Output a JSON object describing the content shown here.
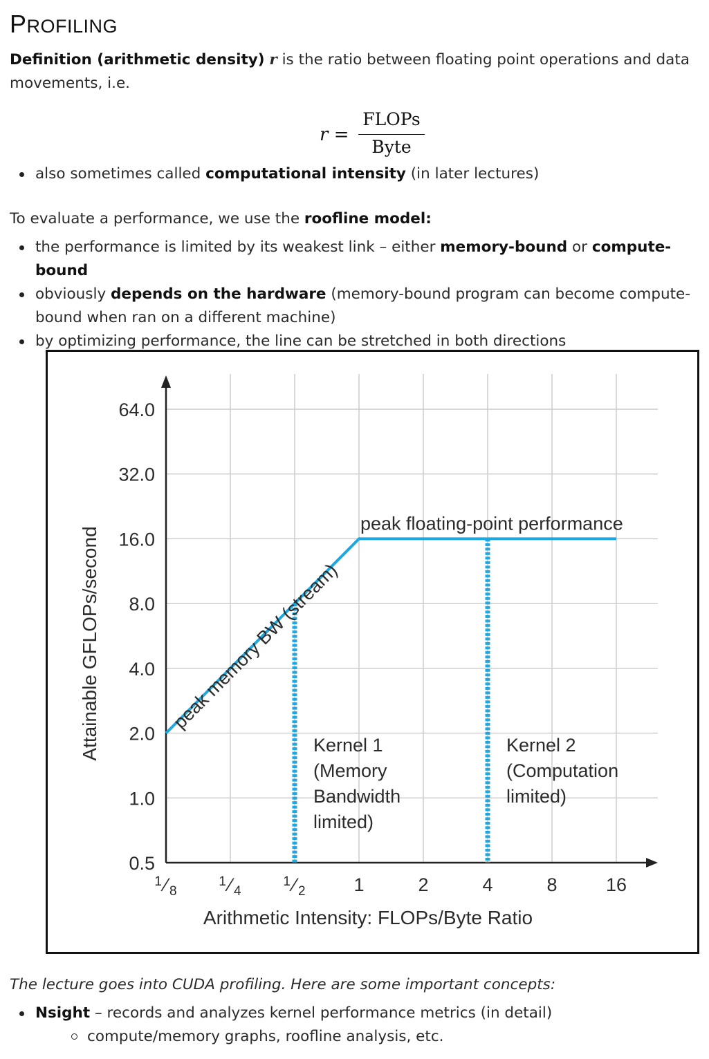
{
  "heading": {
    "first": "P",
    "rest": "ROFILING"
  },
  "definition": {
    "term": "Definition (arithmetic density)",
    "symbol": "r",
    "text": " is the ratio between floating point operations and data movements, i.e."
  },
  "formula": {
    "lhs": "r =",
    "numerator": "FLOPs",
    "denominator": "Byte"
  },
  "bullets1": [
    {
      "pre": "also sometimes called ",
      "bold": "computational intensity",
      "post": " (in later lectures)"
    }
  ],
  "paragraph2": {
    "pre": "To evaluate a performance, we use the ",
    "bold": "roofline model:"
  },
  "bullets2": [
    {
      "pre": "the performance is limited by its weakest link – either ",
      "bold1": "memory-bound",
      "mid": " or ",
      "bold2": "compute-bound"
    },
    {
      "pre": "obviously ",
      "bold": "depends on the hardware",
      "post": " (memory-bound program can become compute-bound when ran on a different machine)"
    },
    {
      "text": "by optimizing performance, the line can be stretched in both directions"
    }
  ],
  "chart_data": {
    "type": "line",
    "xlabel": "Arithmetic Intensity: FLOPs/Byte Ratio",
    "ylabel": "Attainable GFLOPs/second",
    "x_scale": "log2",
    "y_scale": "log2",
    "x_ticks": [
      {
        "value": 0.125,
        "label": "1/8"
      },
      {
        "value": 0.25,
        "label": "1/4"
      },
      {
        "value": 0.5,
        "label": "1/2"
      },
      {
        "value": 1,
        "label": "1"
      },
      {
        "value": 2,
        "label": "2"
      },
      {
        "value": 4,
        "label": "4"
      },
      {
        "value": 8,
        "label": "8"
      },
      {
        "value": 16,
        "label": "16"
      }
    ],
    "y_ticks": [
      {
        "value": 0.5,
        "label": "0.5"
      },
      {
        "value": 1,
        "label": "1.0"
      },
      {
        "value": 2,
        "label": "2.0"
      },
      {
        "value": 4,
        "label": "4.0"
      },
      {
        "value": 8,
        "label": "8.0"
      },
      {
        "value": 16,
        "label": "16.0"
      },
      {
        "value": 32,
        "label": "32.0"
      },
      {
        "value": 64,
        "label": "64.0"
      }
    ],
    "xlim": [
      0.125,
      16
    ],
    "ylim": [
      0.5,
      64
    ],
    "grid": true,
    "roofline": {
      "x": [
        0.125,
        1,
        16
      ],
      "y": [
        2,
        16,
        16
      ],
      "color": "#1ea7e1"
    },
    "annotations": [
      {
        "text": "peak memory BW (stream)",
        "along": "sloped segment"
      },
      {
        "text": "peak floating-point performance",
        "along": "flat segment"
      }
    ],
    "kernels": [
      {
        "x": 0.5,
        "y_top": 8,
        "lines": [
          "Kernel 1",
          "(Memory",
          "Bandwidth",
          "limited)"
        ]
      },
      {
        "x": 4,
        "y_top": 16,
        "lines": [
          "Kernel 2",
          "(Computation",
          "limited)"
        ]
      }
    ],
    "accent": "#1ea7e1"
  },
  "italic_line": "The lecture goes into CUDA profiling. Here are some important concepts:",
  "bullets3": [
    {
      "bold": "Nsight",
      "post": " – records and analyzes kernel performance metrics (in detail)"
    }
  ],
  "sub_bullets": [
    {
      "text": "compute/memory graphs, roofline analysis, etc."
    }
  ]
}
